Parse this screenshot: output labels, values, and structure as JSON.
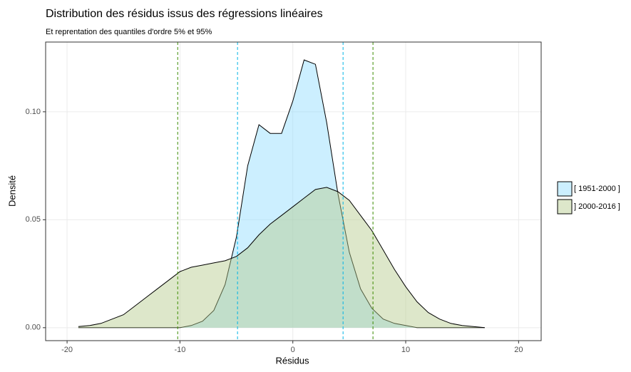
{
  "chart_data": {
    "type": "density",
    "title": "Distribution des résidus issus des régressions linéaires",
    "subtitle": "Et reprentation des quantiles d'ordre 5% et 95%",
    "x_label": "Résidus",
    "y_label": "Densité",
    "x": [
      -19,
      -18,
      -17,
      -16,
      -15,
      -14,
      -13,
      -12,
      -11,
      -10,
      -9,
      -8,
      -7,
      -6,
      -5,
      -4,
      -3,
      -2,
      -1,
      0,
      1,
      2,
      3,
      4,
      5,
      6,
      7,
      8,
      9,
      10,
      11,
      12,
      13,
      14,
      15,
      16,
      17
    ],
    "series": [
      {
        "name": "[ 1951-2000 ]",
        "color": "#8fdcff",
        "values": [
          0,
          0,
          0,
          0,
          0,
          0,
          0,
          0,
          0,
          0,
          0.001,
          0.003,
          0.008,
          0.02,
          0.042,
          0.075,
          0.094,
          0.09,
          0.09,
          0.105,
          0.124,
          0.122,
          0.095,
          0.062,
          0.035,
          0.018,
          0.009,
          0.004,
          0.002,
          0.001,
          0,
          0,
          0,
          0,
          0,
          0,
          0
        ]
      },
      {
        "name": "] 2000-2016 ]",
        "color": "#b3c98a",
        "values": [
          0.0005,
          0.001,
          0.002,
          0.004,
          0.006,
          0.01,
          0.014,
          0.018,
          0.022,
          0.026,
          0.028,
          0.029,
          0.03,
          0.031,
          0.033,
          0.037,
          0.043,
          0.048,
          0.052,
          0.056,
          0.06,
          0.064,
          0.065,
          0.063,
          0.059,
          0.052,
          0.045,
          0.036,
          0.027,
          0.019,
          0.012,
          0.007,
          0.004,
          0.002,
          0.001,
          0.0005,
          0
        ]
      }
    ],
    "quantile_lines": [
      {
        "x": -4.9,
        "color": "#00b4e6"
      },
      {
        "x": 4.45,
        "color": "#00b4e6"
      },
      {
        "x": -10.2,
        "color": "#3a8a00"
      },
      {
        "x": 7.1,
        "color": "#3a8a00"
      }
    ],
    "xlim": [
      -21.9,
      22.0
    ],
    "ylim": [
      -0.006,
      0.1323
    ],
    "xticks": [
      -20,
      -10,
      0,
      10,
      20
    ],
    "yticks": [
      {
        "value": 0,
        "label": "0.00"
      },
      {
        "value": 0.05,
        "label": "0.05"
      },
      {
        "value": 0.1,
        "label": "0.10"
      }
    ],
    "grid": true
  }
}
